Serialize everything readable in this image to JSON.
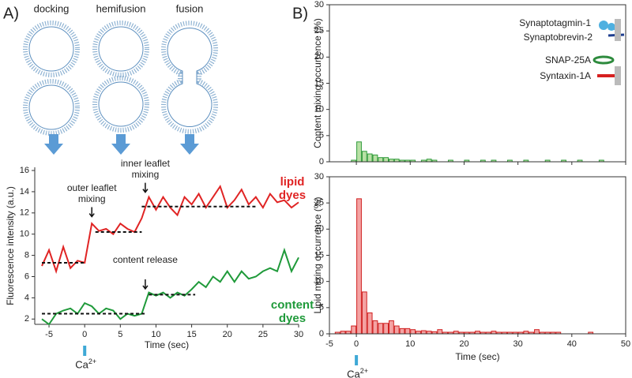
{
  "figure": {
    "panel_labels": [
      "A)",
      "B)"
    ],
    "stages": [
      "docking",
      "hemifusion",
      "fusion"
    ],
    "proteins": [
      "Synaptotagmin-1",
      "Synaptobrevin-2",
      "SNAP-25A",
      "Syntaxin-1A"
    ]
  },
  "chart_data": [
    {
      "type": "line",
      "xlabel": "Time (sec)",
      "ylabel": "Fluorescence intensity (a.u.)",
      "x": [
        -6,
        -5,
        -4,
        -3,
        -2,
        -1,
        0,
        1,
        2,
        3,
        4,
        5,
        6,
        7,
        8,
        9,
        10,
        11,
        12,
        13,
        14,
        15,
        16,
        17,
        18,
        19,
        20,
        21,
        22,
        23,
        24,
        25,
        26,
        27,
        28,
        29,
        30
      ],
      "series": [
        {
          "name": "lipid dyes",
          "color": "#e02424",
          "values": [
            7,
            8.5,
            6.5,
            8.8,
            6.8,
            7.5,
            7.3,
            11,
            10.3,
            10.5,
            10,
            11,
            10.5,
            10.2,
            11.5,
            13.5,
            12.3,
            13.5,
            12.5,
            11.8,
            13.5,
            12.8,
            13.8,
            12.5,
            13.5,
            14.5,
            12.5,
            13.2,
            14.2,
            12.8,
            13.5,
            12.5,
            13.8,
            13,
            13.2,
            12.5,
            13
          ]
        },
        {
          "name": "content dyes",
          "color": "#1f9a3a",
          "values": [
            2,
            1.5,
            2.5,
            2.8,
            3,
            2.5,
            3.5,
            3.2,
            2.5,
            3,
            2.8,
            2,
            2.5,
            2.3,
            2.5,
            4.5,
            4.2,
            4.5,
            4,
            4.5,
            4.2,
            4.8,
            5.5,
            5,
            6,
            5.5,
            6.5,
            5.5,
            6.5,
            5.8,
            6,
            6.5,
            6.8,
            6.5,
            8.5,
            6.5,
            7.8
          ]
        }
      ],
      "reference_lines": [
        {
          "x": [
            -6,
            0
          ],
          "y": 7.3
        },
        {
          "x": [
            1.5,
            8
          ],
          "y": 10.2
        },
        {
          "x": [
            8,
            24
          ],
          "y": 12.6
        },
        {
          "x": [
            -6,
            8.5
          ],
          "y": 2.5
        },
        {
          "x": [
            9,
            15.5
          ],
          "y": 4.3
        }
      ],
      "annotations": [
        {
          "text": "outer leaflet mixing",
          "x": 1,
          "y": 11.5
        },
        {
          "text": "inner leaflet mixing",
          "x": 8.5,
          "y": 13.8
        },
        {
          "text": "content release",
          "x": 8.5,
          "y": 4.7
        }
      ],
      "stimulus": {
        "x": 0,
        "label": "Ca",
        "superscript": "2+"
      },
      "xlim": [
        -7,
        30
      ],
      "ylim": [
        1.5,
        16.3
      ],
      "xticks": [
        -5,
        0,
        5,
        10,
        15,
        20,
        25,
        30
      ],
      "yticks": [
        2,
        4,
        6,
        8,
        10,
        12,
        14,
        16
      ]
    },
    {
      "type": "histogram",
      "ylabel": "Content mixing occurrence (%)",
      "color": "#b9e0a5",
      "edgecolor": "#2f9a3a",
      "bins": [
        -5,
        -4,
        -3,
        -2,
        -1,
        0,
        1,
        2,
        3,
        4,
        5,
        6,
        7,
        8,
        9,
        10,
        11,
        12,
        13,
        14,
        15,
        16,
        17,
        18,
        19,
        20,
        21,
        22,
        23,
        24,
        25,
        26,
        27,
        28,
        29,
        30,
        31,
        32,
        33,
        34,
        35,
        36,
        37,
        38,
        39,
        40,
        41,
        42,
        43,
        44,
        45,
        46,
        47,
        48,
        49,
        50
      ],
      "values": [
        0,
        0,
        0,
        0,
        0.3,
        3.8,
        2,
        1.5,
        1.3,
        0.8,
        0.8,
        0.5,
        0.5,
        0.3,
        0.3,
        0.3,
        0,
        0.3,
        0.5,
        0.3,
        0,
        0,
        0.3,
        0,
        0,
        0.3,
        0,
        0,
        0.3,
        0,
        0.3,
        0,
        0,
        0.3,
        0,
        0,
        0.3,
        0,
        0,
        0,
        0.3,
        0,
        0,
        0.3,
        0,
        0,
        0.3,
        0,
        0,
        0,
        0.3,
        0,
        0,
        0,
        0
      ],
      "xlim": [
        -5,
        50
      ],
      "ylim": [
        0,
        30
      ],
      "xticks": [
        0,
        10,
        20,
        30,
        40,
        50
      ],
      "yticks": [
        0,
        5,
        10,
        15,
        20,
        25,
        30
      ]
    },
    {
      "type": "histogram",
      "xlabel": "Time (sec)",
      "ylabel": "Lipid mixing occurrence (%)",
      "color": "#f4a3a3",
      "edgecolor": "#d02020",
      "bins": [
        -5,
        -4,
        -3,
        -2,
        -1,
        0,
        1,
        2,
        3,
        4,
        5,
        6,
        7,
        8,
        9,
        10,
        11,
        12,
        13,
        14,
        15,
        16,
        17,
        18,
        19,
        20,
        21,
        22,
        23,
        24,
        25,
        26,
        27,
        28,
        29,
        30,
        31,
        32,
        33,
        34,
        35,
        36,
        37,
        38,
        39,
        40,
        41,
        42,
        43,
        44,
        45,
        46,
        47,
        48,
        49,
        50
      ],
      "values": [
        0,
        0.3,
        0.5,
        0.5,
        1.5,
        25.8,
        8,
        4,
        2.5,
        2,
        2,
        2.5,
        1.5,
        1,
        1,
        0.8,
        0.5,
        0.6,
        0.5,
        0.4,
        0.8,
        0.3,
        0.3,
        0.5,
        0.3,
        0.3,
        0.3,
        0.5,
        0.3,
        0.3,
        0.5,
        0.3,
        0.3,
        0.3,
        0.3,
        0.3,
        0.5,
        0.3,
        0.8,
        0.3,
        0.3,
        0.3,
        0.3,
        0,
        0,
        0,
        0,
        0,
        0.3,
        0,
        0,
        0,
        0,
        0,
        0
      ],
      "stimulus": {
        "x": 0,
        "label": "Ca",
        "superscript": "2+"
      },
      "xlim": [
        -5,
        50
      ],
      "ylim": [
        0,
        30
      ],
      "xticks": [
        -5,
        0,
        10,
        20,
        30,
        40,
        50
      ],
      "yticks": [
        0,
        5,
        10,
        15,
        20,
        25,
        30
      ]
    }
  ]
}
